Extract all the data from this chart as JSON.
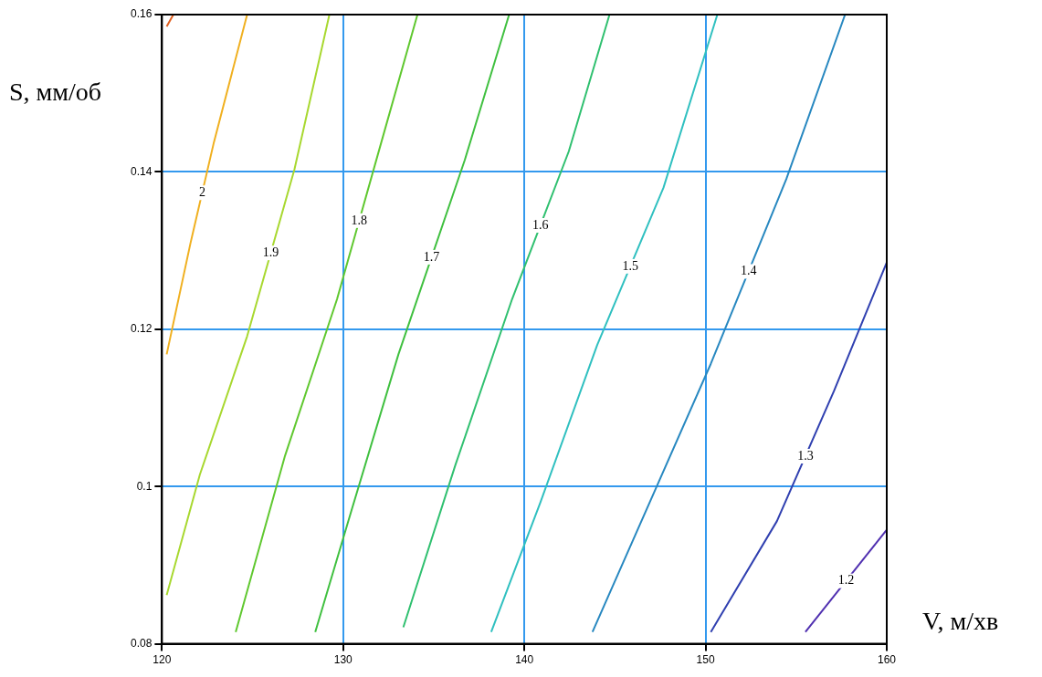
{
  "chart_data": {
    "type": "line",
    "xlabel": "V, м/хв",
    "ylabel": "S, мм/об",
    "xlim": [
      120,
      160
    ],
    "ylim": [
      0.08,
      0.16
    ],
    "xticks": [
      120,
      130,
      140,
      150,
      160
    ],
    "yticks": [
      0.08,
      {
        "value": 0.1,
        "label": "0.1"
      },
      0.12,
      0.14,
      0.16
    ],
    "grid": true,
    "legend": false,
    "marker": "none",
    "line_style": "solid",
    "series": [
      {
        "color": "#e06020",
        "x": [
          120.26,
          120.63
        ],
        "values": [
          0.1585,
          0.16
        ]
      },
      {
        "name": "2",
        "color": "#f0b020",
        "x": [
          120.26,
          121.57,
          122.87,
          124.7
        ],
        "values": [
          0.1168,
          0.1309,
          0.1438,
          0.16
        ]
      },
      {
        "name": "1.9",
        "color": "#a8d830",
        "x": [
          120.26,
          122.09,
          124.7,
          127.31,
          129.24
        ],
        "values": [
          0.0862,
          0.1015,
          0.1191,
          0.1403,
          0.16
        ]
      },
      {
        "name": "1.8",
        "color": "#60c830",
        "x": [
          124.07,
          126.79,
          129.66,
          132.11,
          134.1
        ],
        "values": [
          0.0815,
          0.1039,
          0.1238,
          0.1438,
          0.16
        ]
      },
      {
        "name": "1.7",
        "color": "#40c040",
        "x": [
          128.46,
          130.44,
          133.05,
          136.71,
          139.16
        ],
        "values": [
          0.0815,
          0.0968,
          0.1168,
          0.1415,
          0.16
        ]
      },
      {
        "name": "1.6",
        "color": "#30c070",
        "x": [
          133.32,
          136.19,
          139.32,
          142.45,
          144.7
        ],
        "values": [
          0.0821,
          0.1027,
          0.1238,
          0.1426,
          0.16
        ]
      },
      {
        "name": "1.5",
        "color": "#30c0c0",
        "x": [
          138.17,
          140.89,
          144.02,
          147.68,
          150.65
        ],
        "values": [
          0.0815,
          0.098,
          0.118,
          0.138,
          0.16
        ]
      },
      {
        "name": "1.4",
        "color": "#2888c0",
        "x": [
          143.76,
          147.15,
          150.29,
          154.46,
          157.7
        ],
        "values": [
          0.0815,
          0.0992,
          0.1156,
          0.1391,
          0.16
        ]
      },
      {
        "name": "1.3",
        "color": "#3040b0",
        "x": [
          150.29,
          153.94,
          157.08,
          160
        ],
        "values": [
          0.0815,
          0.0956,
          0.1121,
          0.1285
        ]
      },
      {
        "name": "1.2",
        "color": "#5030b0",
        "x": [
          155.51,
          160
        ],
        "values": [
          0.0815,
          0.0945
        ]
      }
    ]
  }
}
